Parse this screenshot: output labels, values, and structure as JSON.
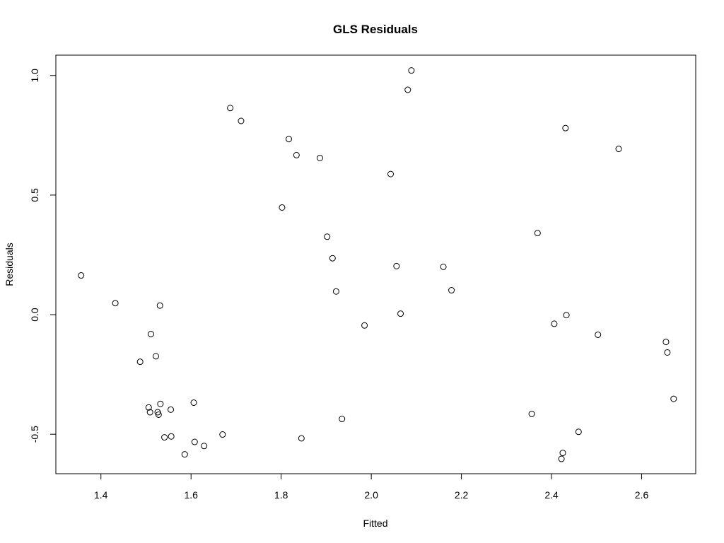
{
  "chart_data": {
    "type": "scatter",
    "title": "GLS Residuals",
    "xlabel": "Fitted",
    "ylabel": "Residuals",
    "xlim": [
      1.3,
      2.72
    ],
    "ylim": [
      -0.665,
      1.085
    ],
    "xticks": [
      1.4,
      1.6,
      1.8,
      2.0,
      2.2,
      2.4,
      2.6
    ],
    "xtick_labels": [
      "1.4",
      "1.6",
      "1.8",
      "2.0",
      "2.2",
      "2.4",
      "2.6"
    ],
    "yticks": [
      -0.5,
      0.0,
      0.5,
      1.0
    ],
    "ytick_labels": [
      "-0.5",
      "0.0",
      "0.5",
      "1.0"
    ],
    "grid": false,
    "marker": "open-circle",
    "points": [
      {
        "x": 1.356,
        "y": 0.164
      },
      {
        "x": 1.432,
        "y": 0.048
      },
      {
        "x": 1.531,
        "y": 0.038
      },
      {
        "x": 1.511,
        "y": -0.081
      },
      {
        "x": 1.522,
        "y": -0.174
      },
      {
        "x": 1.487,
        "y": -0.197
      },
      {
        "x": 1.506,
        "y": -0.388
      },
      {
        "x": 1.509,
        "y": -0.408
      },
      {
        "x": 1.526,
        "y": -0.408
      },
      {
        "x": 1.528,
        "y": -0.418
      },
      {
        "x": 1.532,
        "y": -0.373
      },
      {
        "x": 1.555,
        "y": -0.397
      },
      {
        "x": 1.541,
        "y": -0.513
      },
      {
        "x": 1.556,
        "y": -0.509
      },
      {
        "x": 1.586,
        "y": -0.584
      },
      {
        "x": 1.606,
        "y": -0.368
      },
      {
        "x": 1.608,
        "y": -0.532
      },
      {
        "x": 1.629,
        "y": -0.549
      },
      {
        "x": 1.67,
        "y": -0.501
      },
      {
        "x": 1.687,
        "y": 0.864
      },
      {
        "x": 1.711,
        "y": 0.81
      },
      {
        "x": 1.802,
        "y": 0.448
      },
      {
        "x": 1.817,
        "y": 0.734
      },
      {
        "x": 1.834,
        "y": 0.667
      },
      {
        "x": 1.845,
        "y": -0.517
      },
      {
        "x": 1.886,
        "y": 0.655
      },
      {
        "x": 1.902,
        "y": 0.326
      },
      {
        "x": 1.914,
        "y": 0.236
      },
      {
        "x": 1.922,
        "y": 0.097
      },
      {
        "x": 1.935,
        "y": -0.436
      },
      {
        "x": 1.985,
        "y": -0.045
      },
      {
        "x": 2.043,
        "y": 0.588
      },
      {
        "x": 2.056,
        "y": 0.203
      },
      {
        "x": 2.065,
        "y": 0.004
      },
      {
        "x": 2.081,
        "y": 0.94
      },
      {
        "x": 2.089,
        "y": 1.021
      },
      {
        "x": 2.16,
        "y": 0.2
      },
      {
        "x": 2.178,
        "y": 0.102
      },
      {
        "x": 2.356,
        "y": -0.415
      },
      {
        "x": 2.369,
        "y": 0.341
      },
      {
        "x": 2.406,
        "y": -0.038
      },
      {
        "x": 2.422,
        "y": -0.603
      },
      {
        "x": 2.425,
        "y": -0.578
      },
      {
        "x": 2.431,
        "y": 0.78
      },
      {
        "x": 2.433,
        "y": -0.002
      },
      {
        "x": 2.46,
        "y": -0.49
      },
      {
        "x": 2.503,
        "y": -0.084
      },
      {
        "x": 2.549,
        "y": 0.693
      },
      {
        "x": 2.654,
        "y": -0.114
      },
      {
        "x": 2.657,
        "y": -0.158
      },
      {
        "x": 2.671,
        "y": -0.352
      }
    ]
  }
}
